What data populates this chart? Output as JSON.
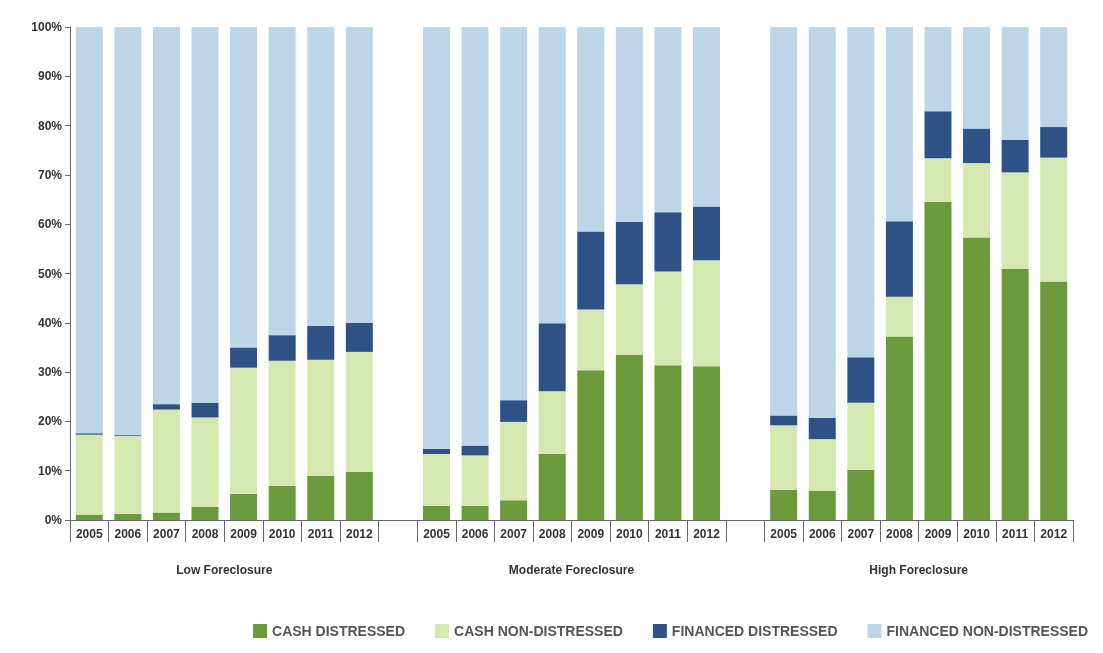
{
  "chart_data": {
    "type": "bar",
    "stacked": true,
    "categories": [
      "2005",
      "2006",
      "2007",
      "2008",
      "2009",
      "2010",
      "2011",
      "2012",
      null,
      "2005",
      "2006",
      "2007",
      "2008",
      "2009",
      "2010",
      "2011",
      "2012",
      null,
      "2005",
      "2006",
      "2007",
      "2008",
      "2009",
      "2010",
      "2011",
      "2012"
    ],
    "series": [
      {
        "name": "CASH DISTRESSED",
        "color": "#6a9a3a",
        "values": [
          1.1,
          1.2,
          1.5,
          2.7,
          5.3,
          6.9,
          9.0,
          9.8,
          null,
          2.9,
          2.9,
          4.0,
          13.4,
          30.4,
          33.5,
          31.4,
          31.2,
          null,
          6.1,
          5.9,
          10.2,
          37.2,
          64.5,
          57.3,
          50.9,
          48.4
        ]
      },
      {
        "name": "CASH NON-DISTRESSED",
        "color": "#d5e8b0",
        "values": [
          16.2,
          15.9,
          20.9,
          18.1,
          25.6,
          25.4,
          23.5,
          24.3,
          null,
          10.5,
          10.2,
          15.9,
          12.7,
          12.3,
          14.3,
          19.0,
          21.5,
          null,
          13.1,
          10.5,
          13.6,
          8.1,
          8.9,
          15.1,
          19.6,
          25.1
        ]
      },
      {
        "name": "FINANCED DISTRESSED",
        "color": "#2f5286",
        "values": [
          0.3,
          0.2,
          1.1,
          3.0,
          4.1,
          5.2,
          6.9,
          5.9,
          null,
          1.0,
          2.0,
          4.4,
          13.8,
          15.8,
          12.7,
          12.0,
          10.9,
          null,
          2.0,
          4.3,
          9.2,
          15.3,
          9.5,
          7.0,
          6.6,
          6.2
        ]
      },
      {
        "name": "FINANCED NON-DISTRESSED",
        "color": "#bcd6e8",
        "values": [
          82.4,
          82.7,
          76.5,
          76.2,
          65.0,
          62.5,
          60.6,
          60.0,
          null,
          85.6,
          84.9,
          75.7,
          60.1,
          41.5,
          39.5,
          37.6,
          36.4,
          null,
          78.8,
          79.3,
          67.0,
          39.4,
          17.1,
          20.6,
          22.9,
          20.3
        ]
      }
    ],
    "ylim": [
      0,
      100
    ],
    "yticks": [
      {
        "value": 0,
        "label": "0%"
      },
      {
        "value": 10,
        "label": "10%"
      },
      {
        "value": 20,
        "label": "20%"
      },
      {
        "value": 30,
        "label": "30%"
      },
      {
        "value": 40,
        "label": "40%"
      },
      {
        "value": 50,
        "label": "50%"
      },
      {
        "value": 60,
        "label": "60%"
      },
      {
        "value": 70,
        "label": "70%"
      },
      {
        "value": 80,
        "label": "80%"
      },
      {
        "value": 90,
        "label": "90%"
      },
      {
        "value": 100,
        "label": "100%"
      }
    ],
    "annotations": [
      "Low Foreclosure",
      "Moderate Foreclosure",
      "High Foreclosure"
    ],
    "grid": false,
    "legend": "bottom right"
  }
}
